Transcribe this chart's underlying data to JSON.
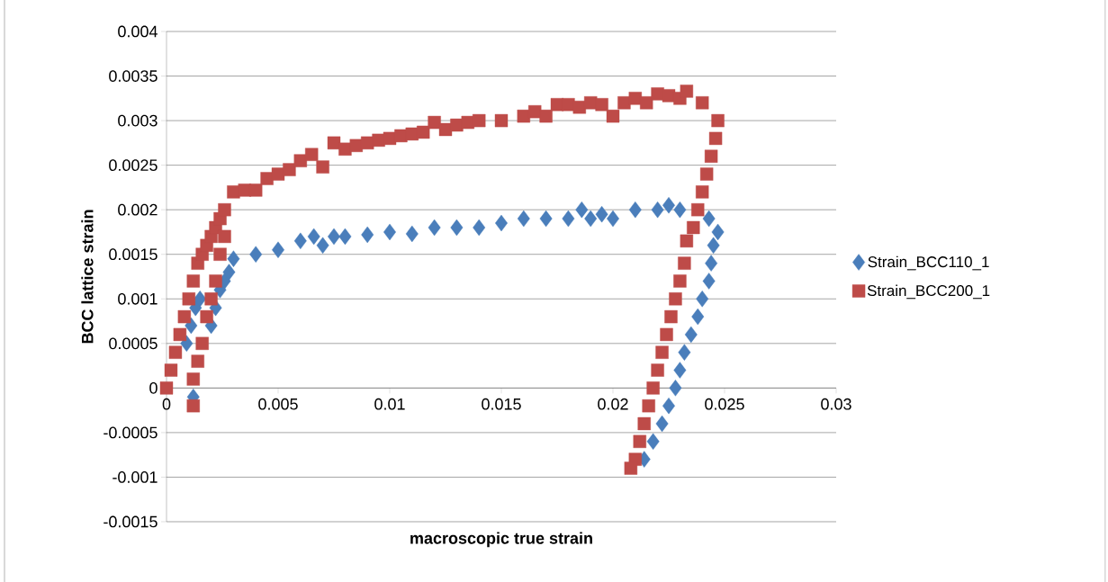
{
  "chart_data": {
    "type": "scatter",
    "xlabel": "macroscopic true strain",
    "ylabel": "BCC lattice strain",
    "xlim": [
      0,
      0.03
    ],
    "ylim": [
      -0.0015,
      0.004
    ],
    "xticks": [
      0,
      0.005,
      0.01,
      0.015,
      0.02,
      0.025,
      0.03
    ],
    "yticks": [
      -0.0015,
      -0.001,
      -0.0005,
      0,
      0.0005,
      0.001,
      0.0015,
      0.002,
      0.0025,
      0.003,
      0.0035,
      0.004
    ],
    "grid": "y",
    "legend": "right",
    "series": [
      {
        "name": "Strain_BCC110_1",
        "color": "#4a7ebb",
        "marker": "diamond",
        "x": [
          0.0009,
          0.0011,
          0.0013,
          0.0015,
          0.0012,
          0.0014,
          0.0016,
          0.0018,
          0.002,
          0.0022,
          0.0024,
          0.0026,
          0.0028,
          0.003,
          0.004,
          0.005,
          0.006,
          0.0066,
          0.007,
          0.0075,
          0.008,
          0.009,
          0.01,
          0.011,
          0.012,
          0.013,
          0.014,
          0.015,
          0.016,
          0.017,
          0.018,
          0.0186,
          0.019,
          0.0195,
          0.02,
          0.021,
          0.022,
          0.0225,
          0.023,
          0.0237,
          0.0243,
          0.0247,
          0.0245,
          0.0244,
          0.0243,
          0.024,
          0.0238,
          0.0235,
          0.0232,
          0.023,
          0.0228,
          0.0225,
          0.0222,
          0.0218,
          0.0214
        ],
        "values": [
          0.0005,
          0.0007,
          0.0009,
          0.001,
          -0.0001,
          null,
          null,
          null,
          0.0007,
          0.0009,
          0.0011,
          0.0012,
          0.0013,
          0.00145,
          0.0015,
          0.00155,
          0.00165,
          0.0017,
          0.0016,
          0.0017,
          0.0017,
          0.00172,
          0.00175,
          0.00173,
          0.0018,
          0.0018,
          0.0018,
          0.00185,
          0.0019,
          0.0019,
          0.0019,
          0.002,
          0.0019,
          0.00195,
          0.0019,
          0.002,
          0.002,
          0.00205,
          0.002,
          null,
          0.0019,
          0.00175,
          0.0016,
          0.0014,
          0.0012,
          0.001,
          0.0008,
          0.0006,
          0.0004,
          0.0002,
          0,
          -0.0002,
          -0.0004,
          -0.0006,
          -0.0008
        ]
      },
      {
        "name": "Strain_BCC200_1",
        "color": "#be4b48",
        "marker": "square",
        "x": [
          0,
          0.0002,
          0.0004,
          0.0006,
          0.0008,
          0.001,
          0.0012,
          0.0014,
          0.0016,
          0.0018,
          0.002,
          0.0022,
          0.0024,
          0.0026,
          0.003,
          0.0035,
          0.004,
          0.0045,
          0.005,
          0.0055,
          0.006,
          0.0065,
          0.007,
          0.0075,
          0.008,
          0.0085,
          0.009,
          0.0095,
          0.01,
          0.0105,
          0.011,
          0.0115,
          0.012,
          0.0125,
          0.013,
          0.0135,
          0.014,
          0.015,
          0.016,
          0.0165,
          0.017,
          0.0175,
          0.018,
          0.0185,
          0.019,
          0.0195,
          0.02,
          0.0205,
          0.021,
          0.0215,
          0.022,
          0.0225,
          0.023,
          0.0233,
          0.024,
          0.0247,
          0.0246,
          0.0244,
          0.0242,
          0.024,
          0.0238,
          0.0236,
          0.0233,
          0.0232,
          0.023,
          0.0228,
          0.0226,
          0.0224,
          0.0222,
          0.022,
          0.0218,
          0.0216,
          0.0214,
          0.0212,
          0.021,
          0.0208,
          0.0026,
          0.0024,
          0.0022,
          0.002,
          0.0018,
          0.0016,
          0.0014,
          0.0012,
          0.0012
        ],
        "values": [
          0,
          0.0002,
          0.0004,
          0.0006,
          0.0008,
          0.001,
          0.0012,
          0.0014,
          0.0015,
          0.0016,
          0.0017,
          0.0018,
          0.0019,
          0.002,
          0.0022,
          0.00222,
          0.00222,
          0.00235,
          0.0024,
          0.00245,
          0.00255,
          0.00262,
          0.00248,
          0.00275,
          0.00268,
          0.00272,
          0.00275,
          0.00278,
          0.0028,
          0.00283,
          0.00285,
          0.00287,
          0.00298,
          0.0029,
          0.00295,
          0.00298,
          0.003,
          0.003,
          0.00305,
          0.0031,
          0.00305,
          0.00318,
          0.00318,
          0.00315,
          0.0032,
          0.00318,
          0.00305,
          0.0032,
          0.00325,
          0.0032,
          0.0033,
          0.00328,
          0.00325,
          0.00333,
          0.0032,
          0.003,
          0.0028,
          0.0026,
          0.0024,
          0.0022,
          0.002,
          0.0018,
          0.00165,
          0.0014,
          0.0012,
          0.001,
          0.0008,
          0.0006,
          0.0004,
          0.0002,
          0,
          -0.0002,
          -0.0004,
          -0.0006,
          -0.0008,
          -0.0009,
          0.0017,
          0.0015,
          0.0012,
          0.001,
          0.0008,
          0.0005,
          0.0003,
          0.0001,
          -0.0002
        ]
      }
    ]
  }
}
